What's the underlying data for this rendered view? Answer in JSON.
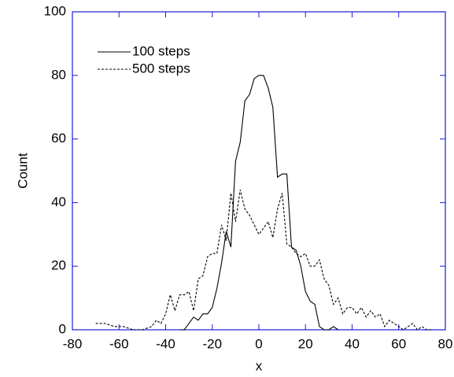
{
  "chart_data": {
    "type": "line",
    "x_label": "x",
    "y_label": "Count",
    "xlim": [
      -80,
      80
    ],
    "xticks": [
      -80,
      -60,
      -40,
      -20,
      0,
      20,
      40,
      60,
      80
    ],
    "ylim": [
      0,
      100
    ],
    "yticks": [
      0,
      20,
      40,
      60,
      80,
      100
    ],
    "legend": "top-left",
    "axis_color": "#1a1adb",
    "series": [
      {
        "name": "100 steps",
        "color": "#000000",
        "dash": "solid",
        "x": [
          -34,
          -32,
          -30,
          -28,
          -26,
          -24,
          -22,
          -20,
          -18,
          -16,
          -14,
          -12,
          -10,
          -8,
          -6,
          -4,
          -2,
          0,
          2,
          4,
          6,
          8,
          10,
          12,
          14,
          16,
          18,
          20,
          22,
          24,
          26,
          28,
          30,
          32,
          34
        ],
        "values": [
          0,
          0,
          2,
          4,
          3,
          5,
          5,
          7,
          13,
          21,
          31,
          26,
          53,
          59,
          72,
          74,
          79,
          80,
          80,
          76,
          70,
          48,
          49,
          49,
          26,
          25,
          20,
          12,
          9,
          8,
          1,
          0,
          0,
          1,
          0
        ]
      },
      {
        "name": "500 steps",
        "color": "#000000",
        "dash": "dashed",
        "x": [
          -70,
          -66,
          -62,
          -58,
          -54,
          -50,
          -46,
          -44,
          -42,
          -40,
          -38,
          -36,
          -34,
          -32,
          -30,
          -28,
          -26,
          -24,
          -22,
          -20,
          -18,
          -16,
          -14,
          -12,
          -10,
          -8,
          -6,
          -4,
          -2,
          0,
          2,
          4,
          6,
          8,
          10,
          12,
          14,
          16,
          18,
          20,
          22,
          24,
          26,
          28,
          30,
          32,
          34,
          36,
          38,
          40,
          42,
          44,
          46,
          48,
          50,
          52,
          54,
          56,
          58,
          60,
          62,
          64,
          66,
          68,
          70,
          72,
          74
        ],
        "values": [
          2,
          2,
          1,
          1,
          0,
          0,
          1,
          3,
          2,
          5,
          11,
          6,
          11,
          11,
          12,
          6,
          16,
          17,
          23,
          24,
          24,
          33,
          28,
          43,
          34,
          44,
          38,
          36,
          33,
          30,
          32,
          34,
          29,
          38,
          43,
          27,
          26,
          24,
          23,
          24,
          20,
          20,
          22,
          16,
          14,
          8,
          10,
          5,
          7,
          7,
          5,
          7,
          4,
          6,
          4,
          5,
          1,
          3,
          2,
          1,
          0,
          1,
          2,
          0,
          1,
          0,
          0
        ]
      }
    ]
  }
}
